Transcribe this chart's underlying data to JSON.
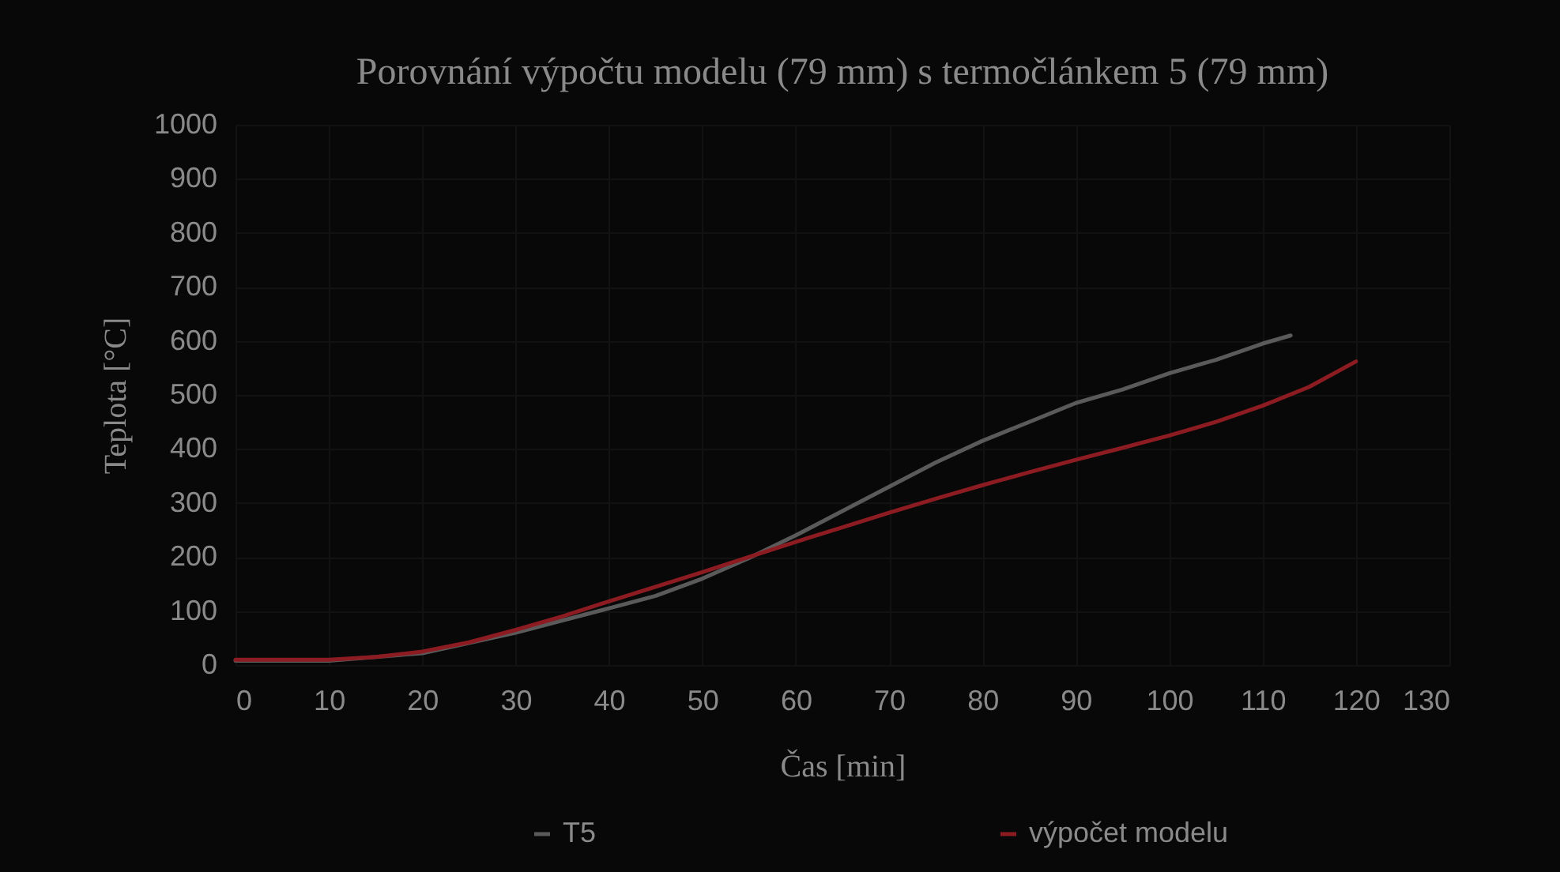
{
  "chart_data": {
    "type": "line",
    "title": "Porovnání výpočtu modelu (79 mm) s termočlánkem 5 (79 mm)",
    "xlabel": "Čas [min]",
    "ylabel": "Teplota [°C]",
    "xlim": [
      0,
      130
    ],
    "xticks": [
      0,
      10,
      20,
      30,
      40,
      50,
      60,
      70,
      80,
      90,
      100,
      110,
      120,
      130
    ],
    "ylim": [
      0,
      1000
    ],
    "yticks": [
      0,
      100,
      200,
      300,
      400,
      500,
      600,
      700,
      800,
      900,
      1000
    ],
    "grid": true,
    "legend": "bottom",
    "marker": "none",
    "line_style": "solid",
    "series": [
      {
        "name": "T5",
        "color": "#5a5a5a",
        "x": [
          0,
          10,
          20,
          30,
          40,
          45,
          50,
          55,
          60,
          65,
          70,
          75,
          80,
          85,
          90,
          95,
          100,
          105,
          110,
          113
        ],
        "values": [
          8,
          8,
          22,
          60,
          105,
          128,
          160,
          198,
          240,
          285,
          330,
          375,
          415,
          450,
          485,
          510,
          540,
          565,
          595,
          610
        ]
      },
      {
        "name": "výpočet modelu",
        "color": "#8c1c22",
        "x": [
          0,
          10,
          15,
          20,
          25,
          30,
          35,
          40,
          45,
          50,
          55,
          60,
          65,
          70,
          75,
          80,
          85,
          90,
          95,
          100,
          105,
          110,
          115,
          120
        ],
        "values": [
          10,
          10,
          15,
          25,
          42,
          65,
          90,
          118,
          145,
          172,
          200,
          228,
          255,
          282,
          308,
          333,
          357,
          380,
          402,
          425,
          450,
          480,
          515,
          562
        ]
      }
    ]
  }
}
